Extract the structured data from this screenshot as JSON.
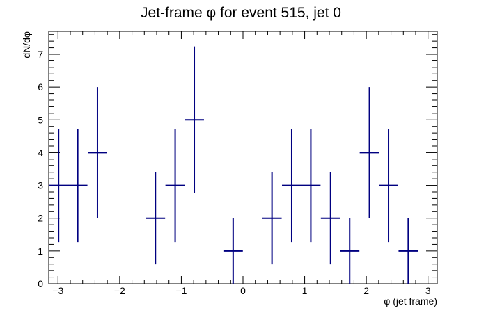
{
  "chart_data": {
    "type": "scatter",
    "title": "Jet-frame   φ for event 515, jet 0",
    "xlabel": "φ (jet frame)",
    "ylabel": "dN/dφ",
    "xlim": [
      -3.15,
      3.15
    ],
    "ylim": [
      0,
      7.7
    ],
    "x_ticks": [
      -3,
      -2,
      -1,
      0,
      1,
      2,
      3
    ],
    "y_ticks": [
      0,
      1,
      2,
      3,
      4,
      5,
      6,
      7
    ],
    "bin_width": 0.315,
    "series": [
      {
        "color": "#000080",
        "points": [
          {
            "x": -2.99,
            "y": 3,
            "err": 1.73
          },
          {
            "x": -2.68,
            "y": 3,
            "err": 1.73
          },
          {
            "x": -2.36,
            "y": 4,
            "err": 2.0
          },
          {
            "x": -1.42,
            "y": 2,
            "err": 1.41
          },
          {
            "x": -1.1,
            "y": 3,
            "err": 1.73
          },
          {
            "x": -0.79,
            "y": 5,
            "err": 2.24
          },
          {
            "x": -0.16,
            "y": 1,
            "err": 1.0
          },
          {
            "x": 0.47,
            "y": 2,
            "err": 1.41
          },
          {
            "x": 0.79,
            "y": 3,
            "err": 1.73
          },
          {
            "x": 1.1,
            "y": 3,
            "err": 1.73
          },
          {
            "x": 1.42,
            "y": 2,
            "err": 1.41
          },
          {
            "x": 1.73,
            "y": 1,
            "err": 1.0
          },
          {
            "x": 2.05,
            "y": 4,
            "err": 2.0
          },
          {
            "x": 2.36,
            "y": 3,
            "err": 1.73
          },
          {
            "x": 2.68,
            "y": 1,
            "err": 1.0
          }
        ]
      }
    ],
    "grid": false,
    "legend": "none"
  }
}
